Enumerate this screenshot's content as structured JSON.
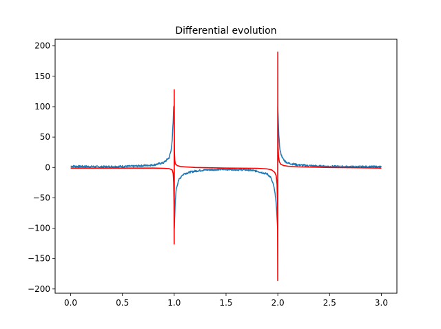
{
  "chart_data": {
    "type": "line",
    "title": "Differential evolution",
    "xlabel": "",
    "ylabel": "",
    "xlim": [
      -0.15,
      3.15
    ],
    "ylim": [
      -207,
      211
    ],
    "xticks": [
      0.0,
      0.5,
      1.0,
      1.5,
      2.0,
      2.5,
      3.0
    ],
    "xtick_labels": [
      "0.0",
      "0.5",
      "1.0",
      "1.5",
      "2.0",
      "2.5",
      "3.0"
    ],
    "yticks": [
      -200,
      -150,
      -100,
      -50,
      0,
      50,
      100,
      150,
      200
    ],
    "ytick_labels": [
      "−200",
      "−150",
      "−100",
      "−50",
      "0",
      "50",
      "100",
      "150",
      "200"
    ],
    "grid": false,
    "series": [
      {
        "color": "#1f77b4",
        "style": "noisy",
        "x": [
          0.0,
          0.3,
          0.6,
          0.8,
          0.9,
          0.95,
          0.97,
          0.98,
          0.99,
          0.995,
          1.0,
          1.001,
          1.005,
          1.01,
          1.02,
          1.04,
          1.07,
          1.1,
          1.2,
          1.3,
          1.5,
          1.7,
          1.8,
          1.9,
          1.93,
          1.96,
          1.98,
          1.99,
          1.995,
          1.999,
          2.0,
          2.005,
          2.01,
          2.02,
          2.04,
          2.07,
          2.1,
          2.2,
          2.4,
          2.7,
          3.0
        ],
        "y": [
          2,
          1,
          2,
          4,
          8,
          16,
          28,
          45,
          75,
          100,
          102,
          -100,
          -80,
          -55,
          -35,
          -22,
          -14,
          -10,
          -6,
          -4,
          -3,
          -4,
          -6,
          -11,
          -16,
          -30,
          -50,
          -75,
          -90,
          -100,
          100,
          75,
          52,
          30,
          17,
          10,
          7,
          4,
          2,
          1,
          1
        ]
      },
      {
        "color": "#ff0000",
        "style": "smooth",
        "x": [
          0.0,
          0.5,
          0.8,
          0.9,
          0.95,
          0.98,
          0.99,
          0.995,
          0.998,
          0.9995,
          1.0,
          1.0005,
          1.002,
          1.005,
          1.01,
          1.03,
          1.06,
          1.1,
          1.2,
          1.5,
          1.8,
          1.9,
          1.94,
          1.97,
          1.985,
          1.993,
          1.997,
          1.9995,
          2.0,
          2.0005,
          2.003,
          2.007,
          2.015,
          2.03,
          2.06,
          2.1,
          2.2,
          2.5,
          3.0
        ],
        "y": [
          -1,
          -1,
          -1,
          -1.5,
          -2,
          -4,
          -10,
          -25,
          -60,
          -126,
          128,
          60,
          25,
          12,
          6,
          3,
          1.5,
          1,
          0,
          -1,
          -1.5,
          -2.5,
          -4,
          -8,
          -14,
          -28,
          -60,
          -186,
          190,
          80,
          35,
          18,
          9,
          5,
          3,
          2,
          1,
          0,
          -1
        ]
      }
    ]
  }
}
